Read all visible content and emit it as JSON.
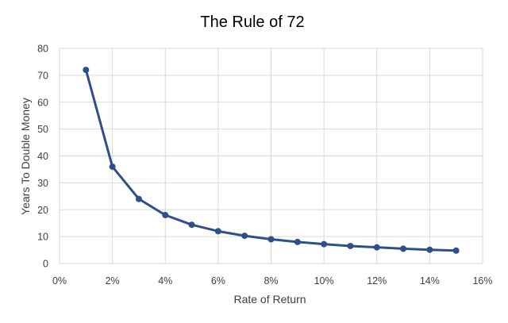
{
  "chart_data": {
    "type": "line",
    "title": "The Rule of 72",
    "xlabel": "Rate of Return",
    "ylabel": "Years To Double Money",
    "x": [
      0.01,
      0.02,
      0.03,
      0.04,
      0.05,
      0.06,
      0.07,
      0.08,
      0.09,
      0.1,
      0.11,
      0.12,
      0.13,
      0.14,
      0.15
    ],
    "series": [
      {
        "values": [
          72,
          36,
          24,
          18,
          14.4,
          12,
          10.3,
          9,
          8,
          7.2,
          6.5,
          6,
          5.5,
          5.1,
          4.8
        ],
        "color": "#2f4f8a"
      }
    ],
    "xlim": [
      0,
      0.16
    ],
    "ylim": [
      0,
      80
    ],
    "xticks": [
      "0%",
      "2%",
      "4%",
      "6%",
      "8%",
      "10%",
      "12%",
      "14%",
      "16%"
    ],
    "yticks": [
      "0",
      "10",
      "20",
      "30",
      "40",
      "50",
      "60",
      "70",
      "80"
    ],
    "grid": true,
    "legend": "none",
    "markers": "circle"
  }
}
